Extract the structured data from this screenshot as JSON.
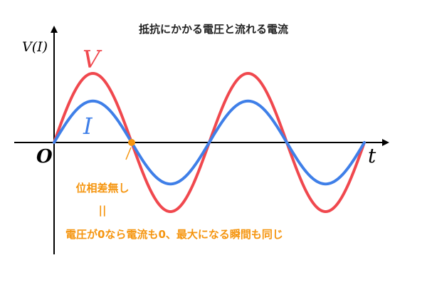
{
  "chart_data": {
    "type": "line",
    "title": "抵抗にかかる電圧と流れる電流",
    "ylabel": "V(I)",
    "xlabel": "t",
    "origin_label": "O",
    "x": [
      0,
      0.125,
      0.25,
      0.375,
      0.5,
      0.625,
      0.75,
      0.875,
      1,
      1.125,
      1.25,
      1.375,
      1.5,
      1.625,
      1.75,
      1.875,
      2
    ],
    "series": [
      {
        "name": "V",
        "color": "#f0484e",
        "values": [
          0,
          0.707,
          1,
          0.707,
          0,
          -0.707,
          -1,
          -0.707,
          0,
          0.707,
          1,
          0.707,
          0,
          -0.707,
          -1,
          -0.707,
          0
        ]
      },
      {
        "name": "I",
        "color": "#3f7fe8",
        "values": [
          0,
          0.424,
          0.6,
          0.424,
          0,
          -0.424,
          -0.6,
          -0.424,
          0,
          0.424,
          0.6,
          0.424,
          0,
          -0.424,
          -0.6,
          -0.424,
          0
        ]
      }
    ],
    "xlim": [
      0,
      2.1
    ],
    "ylim": [
      -1.45,
      1.45
    ],
    "grid": false,
    "annotations": {
      "marker_x": 0.5,
      "marker_color": "#f5950f",
      "text_color": "#f5950f",
      "line1": "位相差無し",
      "line2": "||",
      "line3": "電圧が0なら電流も0、最大になる瞬間も同じ"
    }
  }
}
